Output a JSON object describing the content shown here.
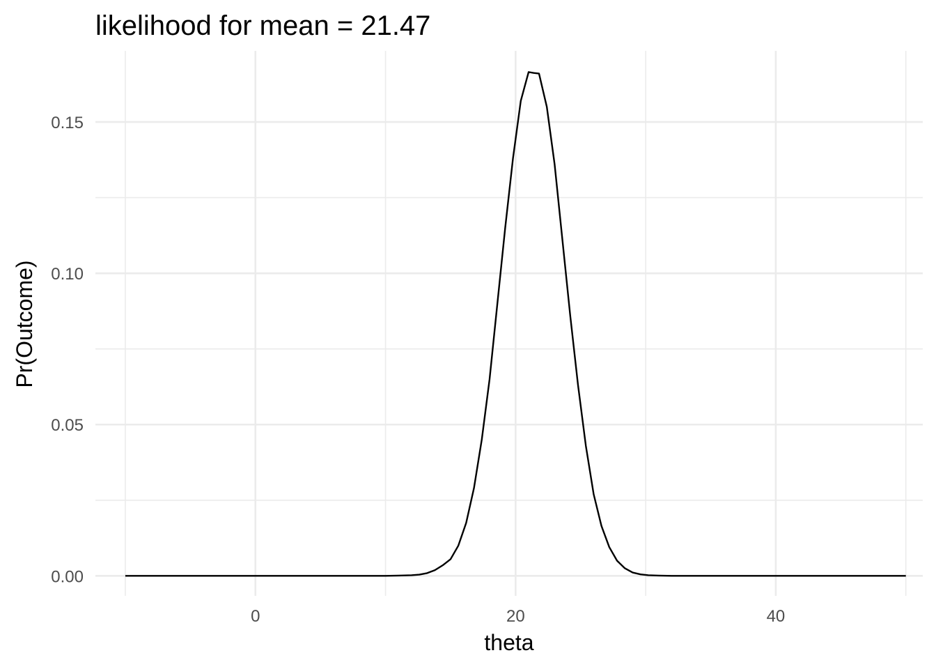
{
  "chart_data": {
    "type": "line",
    "title": "likelihood for mean = 21.47",
    "xlabel": "theta",
    "ylabel": "Pr(Outcome)",
    "xlim": [
      -12.3,
      51.3
    ],
    "ylim": [
      -0.0066,
      0.1735
    ],
    "x_ticks": [
      0,
      20,
      40
    ],
    "x_tick_labels": [
      "0",
      "20",
      "40"
    ],
    "x_minor_ticks": [
      -10,
      10,
      30,
      50
    ],
    "y_ticks": [
      0,
      0.05,
      0.1,
      0.15
    ],
    "y_tick_labels": [
      "0.00",
      "0.05",
      "0.10",
      "0.15"
    ],
    "y_minor_ticks": [
      0.025,
      0.075,
      0.125
    ],
    "grid": true,
    "series": [
      {
        "color": "#000000",
        "x": [
          -10,
          10,
          11,
          12,
          12.6,
          13.2,
          13.8,
          14.4,
          15.0,
          15.6,
          16.2,
          16.8,
          17.4,
          18.0,
          18.6,
          19.2,
          19.8,
          20.4,
          21.0,
          21.4,
          21.8,
          22.4,
          23.0,
          23.6,
          24.2,
          24.8,
          25.4,
          26.0,
          26.6,
          27.2,
          27.8,
          28.4,
          29.0,
          29.6,
          30.2,
          31.0,
          32.0,
          50
        ],
        "values": [
          0,
          0,
          0.0001,
          0.0002,
          0.0004,
          0.0009,
          0.0019,
          0.0035,
          0.0055,
          0.01,
          0.0175,
          0.029,
          0.045,
          0.065,
          0.09,
          0.115,
          0.138,
          0.157,
          0.1665,
          0.1662,
          0.166,
          0.155,
          0.136,
          0.111,
          0.086,
          0.063,
          0.043,
          0.027,
          0.0165,
          0.0095,
          0.005,
          0.0025,
          0.0011,
          0.0005,
          0.0002,
          0.0001,
          0,
          0
        ]
      }
    ]
  }
}
